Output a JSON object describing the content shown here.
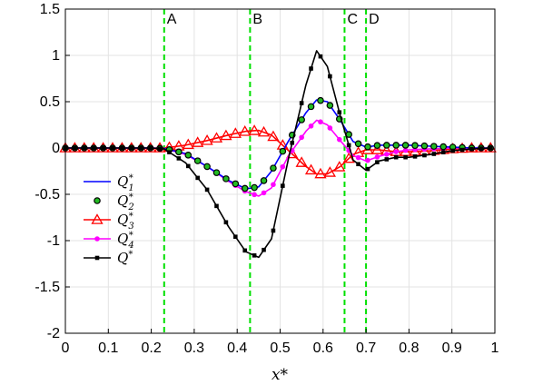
{
  "chart_data": {
    "type": "line",
    "title": "",
    "xlabel": "x*",
    "ylabel": "",
    "xlim": [
      0,
      1
    ],
    "ylim": [
      -2,
      1.5
    ],
    "xticks": [
      "0",
      "0.1",
      "0.2",
      "0.3",
      "0.4",
      "0.5",
      "0.6",
      "0.7",
      "0.8",
      "0.9",
      "1"
    ],
    "yticks": [
      "-2",
      "-1.5",
      "-1",
      "-0.5",
      "0",
      "0.5",
      "1",
      "1.5"
    ],
    "xtick_values": [
      0,
      0.1,
      0.2,
      0.3,
      0.4,
      0.5,
      0.6,
      0.7,
      0.8,
      0.9,
      1
    ],
    "ytick_values": [
      -2,
      -1.5,
      -1,
      -0.5,
      0,
      0.5,
      1,
      1.5
    ],
    "grid": true,
    "legend_position": "left",
    "vertical_lines": [
      {
        "x": 0.23,
        "label": "A",
        "color": "#00e000"
      },
      {
        "x": 0.43,
        "label": "B",
        "color": "#00e000"
      },
      {
        "x": 0.65,
        "label": "C",
        "color": "#00e000"
      },
      {
        "x": 0.7,
        "label": "D",
        "color": "#00e000"
      }
    ],
    "x": [
      0,
      0.1,
      0.2,
      0.23,
      0.28,
      0.33,
      0.38,
      0.42,
      0.45,
      0.48,
      0.52,
      0.56,
      0.585,
      0.61,
      0.64,
      0.67,
      0.7,
      0.73,
      0.77,
      0.8,
      0.85,
      0.9,
      0.95,
      0.99
    ],
    "series": [
      {
        "name": "Q1*",
        "name_main": "Q",
        "name_sub": "1",
        "name_sup": "*",
        "color": "#0000ff",
        "marker": "none",
        "values": [
          0,
          0,
          0,
          -0.005,
          -0.06,
          -0.2,
          -0.35,
          -0.44,
          -0.42,
          -0.25,
          0.08,
          0.38,
          0.52,
          0.5,
          0.3,
          0.07,
          0.01,
          0.03,
          0.03,
          0.03,
          0.02,
          0.01,
          0,
          0
        ]
      },
      {
        "name": "Q2*",
        "name_main": "Q",
        "name_sub": "2",
        "name_sup": "*",
        "color": "#000000",
        "marker": "circle-green",
        "values": [
          0,
          0,
          0,
          -0.005,
          -0.06,
          -0.2,
          -0.35,
          -0.44,
          -0.42,
          -0.25,
          0.08,
          0.38,
          0.52,
          0.5,
          0.3,
          0.07,
          0.01,
          0.03,
          0.03,
          0.03,
          0.02,
          0.01,
          0,
          0
        ]
      },
      {
        "name": "Q3*",
        "name_main": "Q",
        "name_sub": "3",
        "name_sup": "*",
        "color": "#ff0000",
        "marker": "triangle",
        "values": [
          0,
          0,
          0,
          0,
          0.03,
          0.08,
          0.14,
          0.18,
          0.19,
          0.14,
          -0.03,
          -0.2,
          -0.28,
          -0.28,
          -0.2,
          -0.07,
          -0.02,
          -0.02,
          -0.04,
          -0.04,
          -0.03,
          -0.01,
          0,
          0
        ]
      },
      {
        "name": "Q4*",
        "name_main": "Q",
        "name_sub": "4",
        "name_sup": "*",
        "color": "#ff00ff",
        "marker": "dot",
        "values": [
          0,
          0,
          0,
          -0.005,
          -0.07,
          -0.2,
          -0.36,
          -0.47,
          -0.52,
          -0.43,
          -0.08,
          0.18,
          0.3,
          0.25,
          0.08,
          -0.08,
          -0.14,
          -0.09,
          -0.04,
          -0.02,
          -0.01,
          0,
          0,
          0
        ]
      },
      {
        "name": "Q*",
        "name_main": "Q",
        "name_sub": "",
        "name_sup": "*",
        "color": "#000000",
        "marker": "square",
        "values": [
          0,
          0,
          0,
          -0.01,
          -0.16,
          -0.45,
          -0.85,
          -1.12,
          -1.18,
          -0.98,
          -0.1,
          0.68,
          1.05,
          0.88,
          0.35,
          -0.13,
          -0.24,
          -0.14,
          -0.1,
          -0.1,
          -0.07,
          -0.03,
          -0.01,
          0
        ]
      }
    ]
  }
}
